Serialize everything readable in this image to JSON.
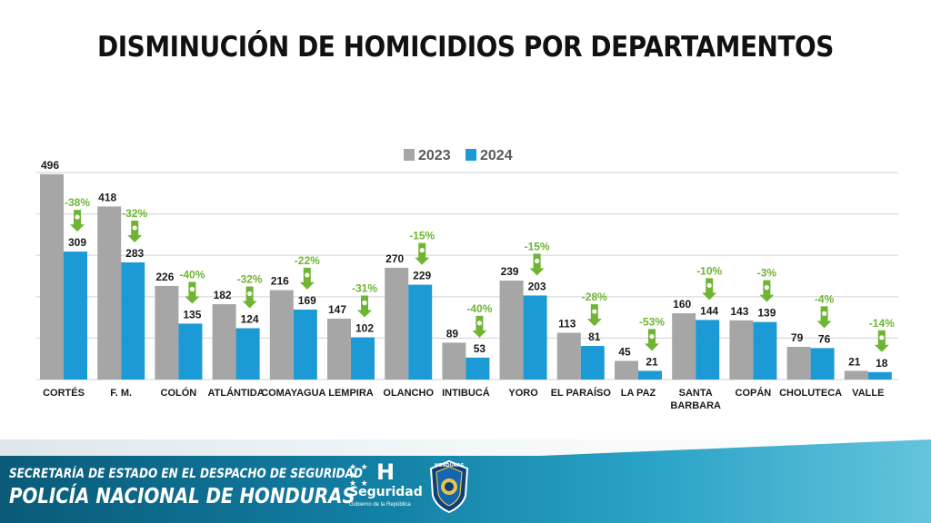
{
  "title": "DISMINUCIÓN DE HOMICIDIOS POR DEPARTAMENTOS",
  "chart_data": {
    "type": "bar",
    "categories": [
      "CORTÉS",
      "F. M.",
      "COLÓN",
      "ATLÁNTIDA",
      "COMAYAGUA",
      "LEMPIRA",
      "OLANCHO",
      "INTIBUCÁ",
      "YORO",
      "EL PARAÍSO",
      "LA PAZ",
      "SANTA BARBARA",
      "COPÁN",
      "CHOLUTECA",
      "VALLE"
    ],
    "series": [
      {
        "name": "2023",
        "color": "#a6a6a6",
        "values": [
          496,
          418,
          226,
          182,
          216,
          147,
          270,
          89,
          239,
          113,
          45,
          160,
          143,
          79,
          21
        ]
      },
      {
        "name": "2024",
        "color": "#1b9ad6",
        "values": [
          309,
          283,
          135,
          124,
          169,
          102,
          229,
          53,
          203,
          81,
          21,
          144,
          139,
          76,
          18
        ]
      }
    ],
    "change_labels": [
      "-38%",
      "-32%",
      "-40%",
      "-32%",
      "-22%",
      "-31%",
      "-15%",
      "-40%",
      "-15%",
      "-28%",
      "-53%",
      "-10%",
      "-3%",
      "-4%",
      "-14%"
    ],
    "change_color": "#6fb533",
    "ylim": [
      0,
      500
    ],
    "grid": true,
    "legend": "top-center"
  },
  "footer": {
    "line1": "SECRETARÍA DE ESTADO EN EL DESPACHO DE SEGURIDAD",
    "line2": "POLICÍA NACIONAL DE HONDURAS",
    "brand_mark": "H",
    "brand_name": "Seguridad",
    "brand_sub": "Gobierno de la República",
    "emblem_text": "HONDURAS"
  }
}
